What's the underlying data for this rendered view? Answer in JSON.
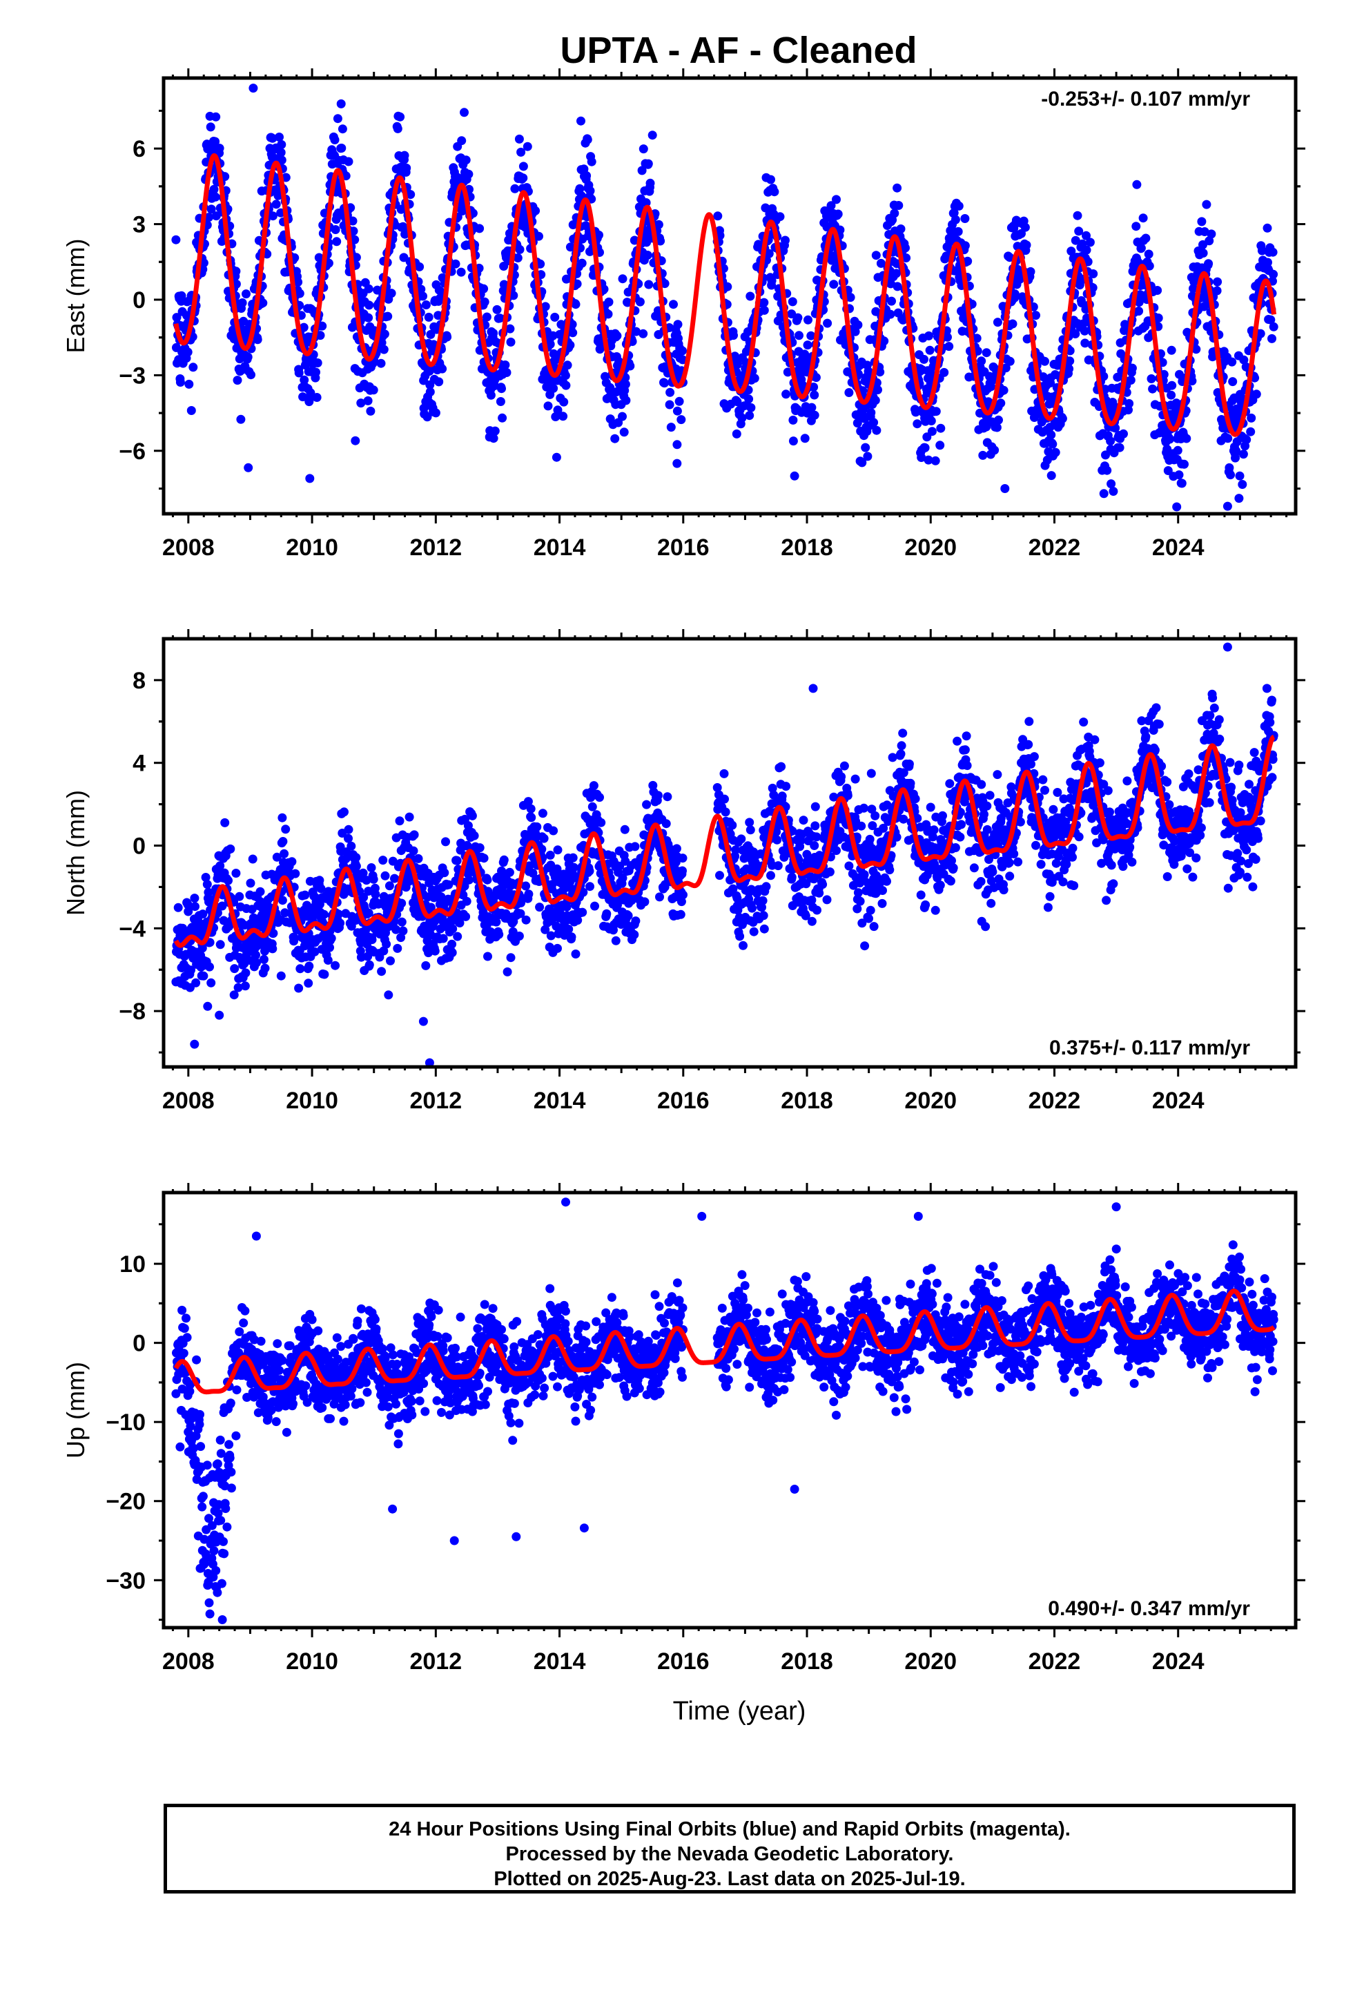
{
  "title": "UPTA  - AF - Cleaned",
  "xlabel": "Time (year)",
  "footer": {
    "line1": "24 Hour Positions Using Final Orbits (blue) and Rapid Orbits (magenta).",
    "line2": "Processed by the Nevada Geodetic Laboratory.",
    "line3": "Plotted on 2025-Aug-23. Last data on 2025-Jul-19."
  },
  "colors": {
    "points": "#0000ff",
    "model": "#ff0000",
    "axes": "#000000"
  },
  "chart_data": [
    {
      "type": "scatter",
      "ylabel": "East (mm)",
      "rate_label": "-0.253+/- 0.107 mm/yr",
      "rate_position": "top-right",
      "xlim": [
        2007.6,
        2025.9
      ],
      "ylim": [
        -8.5,
        8.8
      ],
      "xticks": [
        2008,
        2010,
        2012,
        2014,
        2016,
        2018,
        2020,
        2022,
        2024
      ],
      "yticks": [
        -6,
        -3,
        0,
        3,
        6
      ],
      "ytick_labels": [
        "−6",
        "−3",
        "0",
        "3",
        "6"
      ],
      "data_start": 2007.8,
      "data_end": 2025.55,
      "gaps": [
        [
          2016.0,
          2016.55
        ]
      ],
      "model": {
        "offset": 1.8,
        "trend_mm_per_yr": -0.253,
        "annual_amplitude": [
          3.8,
          3.1
        ],
        "annual_phase_peak": 0.42,
        "semiannual_amplitude": 0.3,
        "baseline_shift": []
      },
      "scatter_sd": 1.2,
      "outliers": [
        [
          2009.05,
          8.4
        ],
        [
          2015.9,
          -6.5
        ],
        [
          2017.8,
          -7.0
        ],
        [
          2021.2,
          -7.5
        ],
        [
          2022.8,
          -7.7
        ],
        [
          2024.8,
          -8.2
        ],
        [
          2010.7,
          -5.6
        ],
        [
          2008.05,
          -4.4
        ]
      ]
    },
    {
      "type": "scatter",
      "ylabel": "North (mm)",
      "rate_label": "0.375+/- 0.117 mm/yr",
      "rate_position": "bottom-right",
      "xlim": [
        2007.6,
        2025.9
      ],
      "ylim": [
        -10.7,
        10.0
      ],
      "xticks": [
        2008,
        2010,
        2012,
        2014,
        2016,
        2018,
        2020,
        2022,
        2024
      ],
      "yticks": [
        -8,
        -4,
        0,
        4,
        8
      ],
      "ytick_labels": [
        "−8",
        "−4",
        "0",
        "4",
        "8"
      ],
      "data_start": 2007.8,
      "data_end": 2025.55,
      "gaps": [
        [
          2016.0,
          2016.55
        ]
      ],
      "model": {
        "offset": -4.0,
        "trend_mm_per_yr": 0.375,
        "annual_amplitude": [
          1.1,
          2.0
        ],
        "annual_phase_peak": 0.55,
        "semiannual_amplitude": 0.6,
        "baseline_shift": []
      },
      "scatter_sd": 1.2,
      "outliers": [
        [
          2018.1,
          7.6
        ],
        [
          2024.8,
          9.6
        ],
        [
          2011.9,
          -10.5
        ],
        [
          2008.5,
          -8.2
        ],
        [
          2008.1,
          -9.6
        ],
        [
          2009.5,
          -6.3
        ],
        [
          2019.9,
          -3.0
        ],
        [
          2011.8,
          -8.5
        ]
      ]
    },
    {
      "type": "scatter",
      "ylabel": "Up (mm)",
      "rate_label": "0.490+/- 0.347 mm/yr",
      "rate_position": "bottom-right",
      "xlim": [
        2007.6,
        2025.9
      ],
      "ylim": [
        -36,
        19
      ],
      "xticks": [
        2008,
        2010,
        2012,
        2014,
        2016,
        2018,
        2020,
        2022,
        2024
      ],
      "yticks": [
        -30,
        -20,
        -10,
        0,
        10
      ],
      "ytick_labels": [
        "−30",
        "−20",
        "−10",
        "0",
        "10"
      ],
      "data_start": 2007.8,
      "data_end": 2025.55,
      "gaps": [
        [
          2016.0,
          2016.55
        ]
      ],
      "model": {
        "offset": -5.0,
        "trend_mm_per_yr": 0.49,
        "annual_amplitude": [
          2.0,
          2.6
        ],
        "annual_phase_peak": 0.9,
        "semiannual_amplitude": 0.6,
        "baseline_shift": []
      },
      "scatter_sd": 2.6,
      "anomaly": {
        "x0": 2007.85,
        "x1": 2008.7,
        "min": -33
      },
      "outliers": [
        [
          2014.1,
          17.8
        ],
        [
          2016.3,
          16.0
        ],
        [
          2023.0,
          17.2
        ],
        [
          2011.3,
          -21.0
        ],
        [
          2012.3,
          -25.0
        ],
        [
          2013.3,
          -24.5
        ],
        [
          2014.4,
          -23.4
        ],
        [
          2017.8,
          -18.5
        ],
        [
          2008.55,
          -35.0
        ],
        [
          2009.1,
          13.5
        ],
        [
          2019.8,
          16.0
        ]
      ]
    }
  ]
}
